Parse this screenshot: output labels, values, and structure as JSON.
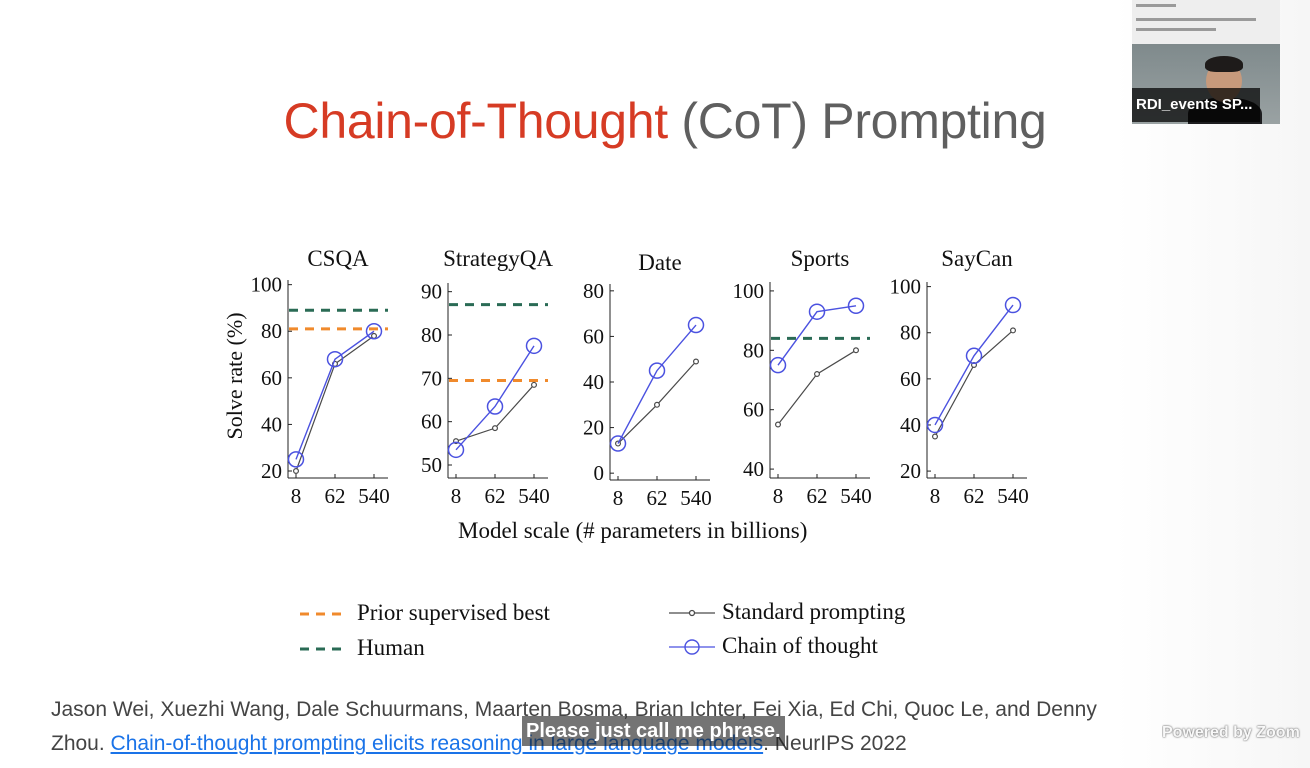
{
  "slide": {
    "title_accent": "Chain-of-Thought",
    "title_rest": " (CoT) Prompting",
    "xlabel": "Model scale (# parameters in billions)",
    "ylabel": "Solve rate (%)",
    "legend": {
      "prior": "Prior supervised best",
      "human": "Human",
      "standard": "Standard prompting",
      "cot": "Chain of thought"
    },
    "citation": {
      "authors_line": "Jason Wei, Xuezhi Wang, Dale Schuurmans, Maarten Bosma, Brian Ichter, Fei Xia, Ed Chi, Quoc Le, and Denny",
      "author_end": "Zhou. ",
      "link": "Chain-of-thought prompting elicits reasoning in large language models",
      "venue": ". NeurIPS 2022"
    }
  },
  "overlay": {
    "caption": "Please just call me phrase.",
    "watermark": "Powered by Zoom",
    "participant_name": "RDI_events SP..."
  },
  "colors": {
    "accent": "#d63b24",
    "prior": "#f08a2c",
    "human": "#2a6b55",
    "standard": "#4a4a4a",
    "cot": "#4b52e0",
    "link": "#1a73e8"
  },
  "chart_data": [
    {
      "type": "line",
      "title": "CSQA",
      "x": [
        "8",
        "62",
        "540"
      ],
      "ylim": [
        17,
        102
      ],
      "yticks": [
        20,
        40,
        60,
        80,
        100
      ],
      "series": [
        {
          "name": "Standard prompting",
          "values": [
            20,
            66,
            78
          ]
        },
        {
          "name": "Chain of thought",
          "values": [
            25,
            68,
            80
          ]
        }
      ],
      "prior_best": 81,
      "human": 89
    },
    {
      "type": "line",
      "title": "StrategyQA",
      "x": [
        "8",
        "62",
        "540"
      ],
      "ylim": [
        47,
        92
      ],
      "yticks": [
        50,
        60,
        70,
        80,
        90
      ],
      "series": [
        {
          "name": "Standard prompting",
          "values": [
            55.5,
            58.5,
            68.5
          ]
        },
        {
          "name": "Chain of thought",
          "values": [
            53.5,
            63.5,
            77.5
          ]
        }
      ],
      "prior_best": 69.5,
      "human": 87
    },
    {
      "type": "line",
      "title": "Date",
      "x": [
        "8",
        "62",
        "540"
      ],
      "ylim": [
        -3,
        83
      ],
      "yticks": [
        0,
        20,
        40,
        60,
        80
      ],
      "series": [
        {
          "name": "Standard prompting",
          "values": [
            13,
            30,
            49
          ]
        },
        {
          "name": "Chain of thought",
          "values": [
            13,
            45,
            65
          ]
        }
      ]
    },
    {
      "type": "line",
      "title": "Sports",
      "x": [
        "8",
        "62",
        "540"
      ],
      "ylim": [
        37,
        103
      ],
      "yticks": [
        40,
        60,
        80,
        100
      ],
      "series": [
        {
          "name": "Standard prompting",
          "values": [
            55,
            72,
            80
          ]
        },
        {
          "name": "Chain of thought",
          "values": [
            75,
            93,
            95
          ]
        }
      ],
      "human": 84
    },
    {
      "type": "line",
      "title": "SayCan",
      "x": [
        "8",
        "62",
        "540"
      ],
      "ylim": [
        17,
        102
      ],
      "yticks": [
        20,
        40,
        60,
        80,
        100
      ],
      "series": [
        {
          "name": "Standard prompting",
          "values": [
            35,
            66,
            81
          ]
        },
        {
          "name": "Chain of thought",
          "values": [
            40,
            70,
            92
          ]
        }
      ]
    }
  ]
}
